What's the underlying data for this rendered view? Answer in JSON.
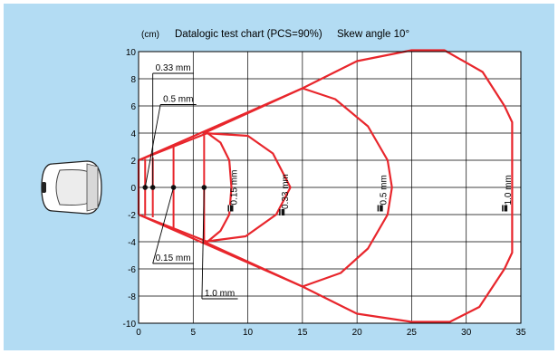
{
  "chart_data": {
    "type": "area",
    "title": "Datalogic test chart (PCS=90%)",
    "unit": "(cm)",
    "subtitle": "Skew angle 10°",
    "xlim": [
      0,
      35
    ],
    "ylim": [
      -10,
      10
    ],
    "x_ticks": [
      0,
      5,
      10,
      15,
      20,
      25,
      30,
      35
    ],
    "y_ticks": [
      10,
      8,
      6,
      4,
      2,
      0,
      -2,
      -4,
      -6,
      -8,
      -10
    ],
    "grid": true,
    "colors": {
      "background": "#b3dcf3",
      "plot": "#ffffff",
      "series": "#e8262c",
      "grid": "#000000"
    },
    "series": [
      {
        "name": "0.15 mm",
        "range_label": "0.15 mm",
        "points": [
          [
            0,
            -2
          ],
          [
            0,
            2
          ],
          [
            6.3,
            4
          ],
          [
            7.5,
            3.3
          ],
          [
            8.3,
            2
          ],
          [
            8.5,
            0
          ],
          [
            8.3,
            -2
          ],
          [
            7.5,
            -3.2
          ],
          [
            6.3,
            -4
          ],
          [
            0,
            -2
          ]
        ],
        "inner_line": [
          [
            6,
            -4
          ],
          [
            6,
            4
          ]
        ],
        "bar_label": "0.15 mm",
        "bar_pos": [
          8.5,
          -1.5
        ]
      },
      {
        "name": "0.33 mm",
        "range_label": "0.33 mm",
        "points": [
          [
            6,
            4
          ],
          [
            10,
            3.8
          ],
          [
            12.3,
            2.5
          ],
          [
            13.9,
            0
          ],
          [
            12.6,
            -2
          ],
          [
            9.8,
            -3.6
          ],
          [
            6,
            -4
          ]
        ],
        "inner_line": [
          [
            3.2,
            -3
          ],
          [
            3.2,
            3
          ]
        ],
        "bar_label": "0.33 mm",
        "bar_pos": [
          13.2,
          -1.8
        ]
      },
      {
        "name": "0.5 mm",
        "range_label": "0.5 mm",
        "points": [
          [
            6,
            4
          ],
          [
            15,
            7.3
          ],
          [
            18,
            6.5
          ],
          [
            21,
            4.5
          ],
          [
            22.8,
            2
          ],
          [
            23.2,
            0
          ],
          [
            22.8,
            -2
          ],
          [
            21,
            -4.5
          ],
          [
            18.5,
            -6.3
          ],
          [
            15,
            -7.3
          ],
          [
            6,
            -4
          ]
        ],
        "inner_line": [
          [
            1.3,
            -2.2
          ],
          [
            1.3,
            2.2
          ]
        ],
        "bar_label": "0.5 mm",
        "bar_pos": [
          22.2,
          -1.5
        ]
      },
      {
        "name": "1.0 mm",
        "range_label": "1.0 mm",
        "points": [
          [
            0,
            2
          ],
          [
            15,
            7.3
          ],
          [
            20,
            9.3
          ],
          [
            25,
            10.1
          ],
          [
            28,
            10.1
          ],
          [
            31.5,
            8.5
          ],
          [
            33.5,
            6
          ],
          [
            34.2,
            4.8
          ],
          [
            34.2,
            -4.8
          ],
          [
            33.5,
            -6
          ],
          [
            31.2,
            -8.8
          ],
          [
            28.5,
            -9.9
          ],
          [
            25,
            -9.9
          ],
          [
            20,
            -9.3
          ],
          [
            15,
            -7.3
          ],
          [
            0,
            -2
          ]
        ],
        "inner_line": [
          [
            0.6,
            -2.1
          ],
          [
            0.6,
            2.1
          ]
        ],
        "bar_label": "1.0 mm",
        "bar_pos": [
          33.6,
          -1.5
        ]
      }
    ],
    "center_points": [
      [
        0.6,
        0
      ],
      [
        1.3,
        0
      ],
      [
        3.2,
        0
      ],
      [
        6,
        0
      ]
    ],
    "callouts": [
      {
        "label": "0.33 mm",
        "anchor": [
          1.3,
          0
        ],
        "label_pos": [
          1.3,
          8.4
        ]
      },
      {
        "label": "0.5 mm",
        "anchor": [
          0.6,
          0
        ],
        "label_pos": [
          2.0,
          6.1
        ]
      },
      {
        "label": "0.15 mm",
        "anchor": [
          3.2,
          0
        ],
        "label_pos": [
          1.3,
          -5.6
        ]
      },
      {
        "label": "1.0 mm",
        "anchor": [
          6,
          0
        ],
        "label_pos": [
          5.8,
          -8.2
        ]
      }
    ]
  }
}
